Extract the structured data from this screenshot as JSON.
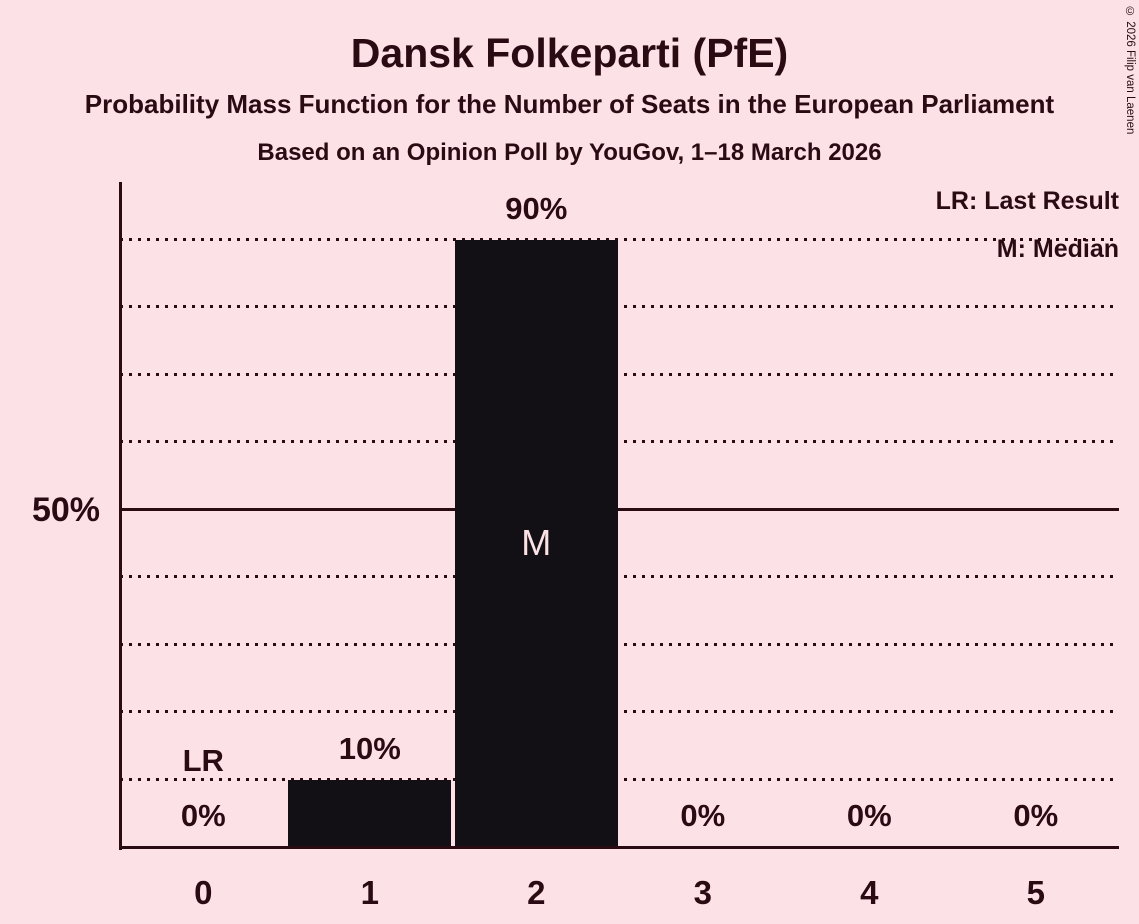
{
  "copyright": "© 2026 Filip van Laenen",
  "chart_data": {
    "type": "bar",
    "title": "Dansk Folkeparti (PfE)",
    "subtitle": "Probability Mass Function for the Number of Seats in the European Parliament",
    "poll_line": "Based on an Opinion Poll by YouGov, 1–18 March 2026",
    "xlabel": "",
    "ylabel": "",
    "categories": [
      "0",
      "1",
      "2",
      "3",
      "4",
      "5"
    ],
    "values": [
      0,
      10,
      90,
      0,
      0,
      0
    ],
    "bar_labels": [
      "0%",
      "10%",
      "90%",
      "0%",
      "0%",
      "0%"
    ],
    "ylim": [
      0,
      100
    ],
    "y_tick_label": "50%",
    "y_tick_value": 50,
    "gridlines_pct": [
      10,
      20,
      30,
      40,
      50,
      60,
      70,
      80,
      90
    ],
    "solid_gridline_pct": 50,
    "grid": "dotted horizontal lines every 10%, solid at 50%",
    "legend": {
      "position": "top-right",
      "last_result": "LR: Last Result",
      "median": "M: Median"
    },
    "annotations": {
      "last_result": {
        "label": "LR",
        "category": "0"
      },
      "median": {
        "label": "M",
        "category": "2"
      }
    },
    "colors": {
      "background": "#fce2e7",
      "text": "#2a0b14",
      "bar": "#121014"
    }
  }
}
